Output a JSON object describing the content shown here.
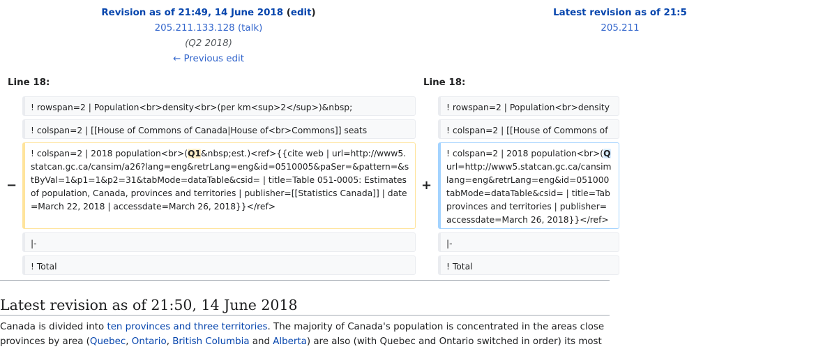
{
  "left": {
    "title_prefix": "Revision as of 21:49, 14 June 2018",
    "edit_open": "(",
    "edit_label": "edit",
    "edit_close": ")",
    "user": "205.211.133.128",
    "talk_label": "(talk)",
    "summary": "(Q2 2018)",
    "prev_edit": "← Previous edit",
    "line_label": "Line 18:"
  },
  "right": {
    "title_prefix": "Latest revision as of 21:5",
    "user": "205.211",
    "line_label": "Line 18:"
  },
  "diff": {
    "ctx1": "! rowspan=2 | Population<br>density<br>(per km<sup>2</sup>)&nbsp;",
    "ctx1_right": "! rowspan=2 | Population<br>density",
    "ctx2": "! colspan=2 | [[House of Commons of Canada|House of<br>Commons]] seats",
    "ctx2_right": "! colspan=2 | [[House of Commons of",
    "del_marker": "−",
    "add_marker": "+",
    "changed_pre": "! colspan=2 | 2018 population<br>(",
    "changed_old": "Q1",
    "changed_new": "Q",
    "changed_post": "&nbsp;est.)<ref>{{cite web | url=http://www5.statcan.gc.ca/cansim/a26?lang=eng&retrLang=eng&id=0510005&paSer=&pattern=&stByVal=1&p1=1&p2=31&tabMode=dataTable&csid= | title=Table 051-0005: Estimates of population, Canada, provinces and territories | publisher=[[Statistics Canada]] | date=March 22, 2018 | accessdate=March 26, 2018}}</ref>",
    "right_line2": "url=http://www5.statcan.gc.ca/cansim",
    "right_line3": "lang=eng&retrLang=eng&id=051000",
    "right_line4": "tabMode=dataTable&csid= | title=Tab",
    "right_line5": "provinces and territories | publisher=",
    "right_line6": "accessdate=March 26, 2018}}</ref>",
    "ctx3": "|-",
    "ctx4": "! Total"
  },
  "section": {
    "heading": "Latest revision as of 21:50, 14 June 2018",
    "para_t1": "Canada is divided into ",
    "para_link1": "ten provinces and three territories",
    "para_t2": ". The majority of Canada's population is concentrated in the areas close",
    "para2_t1": "provinces by area (",
    "para2_l1": "Quebec",
    "para2_sep1": ", ",
    "para2_l2": "Ontario",
    "para2_sep2": ", ",
    "para2_l3": "British Columbia",
    "para2_t2": " and ",
    "para2_l4": "Alberta",
    "para2_t3": ") are also (with Quebec and Ontario switched in order) its most"
  }
}
